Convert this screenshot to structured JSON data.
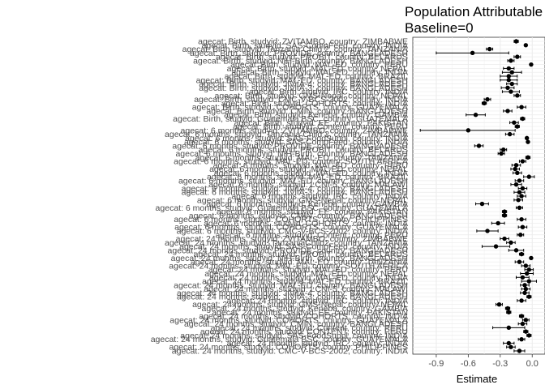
{
  "chart_data": {
    "type": "scatter",
    "subtype": "forest-plot",
    "title_lines": [
      "Population Attributable",
      "Baseline=0"
    ],
    "xlabel": "Estimate",
    "ylabel": "",
    "xlim": [
      -1.12,
      0.12
    ],
    "x_ticks": [
      -0.9,
      -0.6,
      -0.3,
      0.0
    ],
    "x_tick_labels": [
      "-0.9",
      "-0.6",
      "-0.3",
      "0.0"
    ],
    "grid": true,
    "legend": "none",
    "point_color": "#000000",
    "rows": [
      {
        "label": "agecat: Birth, studyid: ZVITAMBO, country: ZIMBABWE",
        "est": -0.15,
        "lo": -0.17,
        "hi": -0.13
      },
      {
        "label": "agecat: Birth, studyid: SAS-CompFeed, country: INDIA",
        "est": -0.06,
        "lo": -0.07,
        "hi": -0.05
      },
      {
        "label": "agecat: Birth, studyid: Tanzania Child 2, country: TANZANIA",
        "est": -0.4,
        "lo": -0.43,
        "hi": -0.37
      },
      {
        "label": "agecat: Birth, studyid: PROVIDE, country: BANGLADESH",
        "est": -0.56,
        "lo": -0.9,
        "hi": -0.22
      },
      {
        "label": "agecat: Birth, studyid: PROBIT, country: BELARUS",
        "est": -0.14,
        "lo": -0.17,
        "hi": -0.11
      },
      {
        "label": "agecat: Birth, studyid: NIH-Birth, country: BANGLADESH",
        "est": -0.2,
        "lo": -0.23,
        "hi": -0.17
      },
      {
        "label": "agecat: Birth, studyid: MAL-ED, country: PERU",
        "est": -0.01,
        "lo": -0.02,
        "hi": 0.0
      },
      {
        "label": "agecat: Birth, studyid: MAL-ED, country: NEPAL",
        "est": -0.22,
        "lo": -0.27,
        "hi": -0.17
      },
      {
        "label": "agecat: Birth, studyid: MAL-ED, country: INDIA",
        "est": -0.19,
        "lo": -0.28,
        "hi": -0.1
      },
      {
        "label": "agecat: Birth, studyid: MAL-ED, country: BRAZIL",
        "est": -0.22,
        "lo": -0.3,
        "hi": -0.14
      },
      {
        "label": "agecat: Birth, studyid: MAL-ED, country: BANGLADESH",
        "est": -0.22,
        "lo": -0.3,
        "hi": -0.14
      },
      {
        "label": "agecat: Birth, studyid: JiVitA-4, country: BANGLADESH",
        "est": -0.19,
        "lo": -0.24,
        "hi": -0.14
      },
      {
        "label": "agecat: Birth, studyid: JiVitA-3, country: BANGLADESH",
        "est": -0.23,
        "lo": -0.29,
        "hi": -0.17
      },
      {
        "label": "agecat: Birth, studyid: IRC, country: INDIA",
        "est": -0.2,
        "lo": -0.28,
        "hi": -0.12
      },
      {
        "label": "agecat: Birth, studyid: GMS-Nepal, country: NEPAL",
        "est": -0.14,
        "lo": -0.17,
        "hi": -0.11
      },
      {
        "label": "agecat: Birth, studyid: CMC-V-BCS-2002, country: INDIA",
        "est": -0.42,
        "lo": -0.45,
        "hi": -0.39
      },
      {
        "label": "agecat: Birth, studyid: COHORTS, country: INDIA",
        "est": -0.45,
        "lo": -0.47,
        "hi": -0.43
      },
      {
        "label": "agecat: Birth, studyid: COHORTS, country: GUATEMALA",
        "est": -0.1,
        "lo": -0.14,
        "hi": -0.06
      },
      {
        "label": "agecat: Birth, studyid: CMIN, country: BANGLADESH",
        "est": -0.23,
        "lo": -0.27,
        "hi": -0.19
      },
      {
        "label": "agecat: Birth, studyid: Keneba, country: GAMBIA",
        "est": -0.53,
        "lo": -0.62,
        "hi": -0.44
      },
      {
        "label": "agecat: Birth, studyid: Guatemala BSC, country: GUATEMALA",
        "est": -0.09,
        "lo": -0.11,
        "hi": -0.07
      },
      {
        "label": "agecat: Birth, studyid: EE, country: PAKISTAN",
        "est": -0.17,
        "lo": -0.21,
        "hi": -0.13
      },
      {
        "label": "agecat: Birth, studyid: Content, country: PERU",
        "est": -0.14,
        "lo": -0.16,
        "hi": -0.12
      },
      {
        "label": "agecat: 6 months, studyid: ZVITAMBO, country: ZIMBABWE",
        "est": -0.6,
        "lo": -1.05,
        "hi": -0.16
      },
      {
        "label": "agecat: 6 months, studyid: Tanzania Child 2, country: TANZANIA",
        "est": -0.21,
        "lo": -0.25,
        "hi": -0.17
      },
      {
        "label": "agecat: 6 months, studyid: SAS-FoodSuppl, country: INDIA",
        "est": -0.05,
        "lo": -0.06,
        "hi": -0.04
      },
      {
        "label": "agecat: 6 months, studyid: SAS-CompFeed, country: INDIA",
        "est": -0.04,
        "lo": -0.05,
        "hi": -0.03
      },
      {
        "label": "agecat: 6 months, studyid: PROVIDE, country: BANGLADESH",
        "est": -0.5,
        "lo": -0.54,
        "hi": -0.46
      },
      {
        "label": "agecat: 6 months, studyid: PROBIT, country: BELARUS",
        "est": -0.27,
        "lo": -0.3,
        "hi": -0.24
      },
      {
        "label": "agecat: 6 months, studyid: NIH-Birth, country: BANGLADESH",
        "est": -0.29,
        "lo": -0.32,
        "hi": -0.26
      },
      {
        "label": "agecat: 6 months, studyid: MAL-ED, country: TANZANIA",
        "est": -0.04,
        "lo": -0.06,
        "hi": -0.02
      },
      {
        "label": "agecat: 6 months, studyid: MAL-ED, country: SOUTH AFRICA",
        "est": -0.09,
        "lo": -0.12,
        "hi": -0.06
      },
      {
        "label": "agecat: 6 months, studyid: MAL-ED, country: PERU",
        "est": -0.15,
        "lo": -0.19,
        "hi": -0.11
      },
      {
        "label": "agecat: 6 months, studyid: MAL-ED, country: NEPAL",
        "est": -0.16,
        "lo": -0.2,
        "hi": -0.12
      },
      {
        "label": "agecat: 6 months, studyid: MAL-ED, country: INDIA",
        "est": -0.14,
        "lo": -0.18,
        "hi": -0.1
      },
      {
        "label": "agecat: 6 months, studyid: MAL-ED, country: BRAZIL",
        "est": -0.03,
        "lo": -0.08,
        "hi": 0.02
      },
      {
        "label": "agecat: 6 months, studyid: MAL-ED, country: BANGLADESH",
        "est": -0.12,
        "lo": -0.16,
        "hi": -0.08
      },
      {
        "label": "agecat: 6 months, studyid: LCNI-5, country: MALAWI",
        "est": -0.15,
        "lo": -0.2,
        "hi": -0.1
      },
      {
        "label": "agecat: 6 months, studyid: JiVitA-4, country: BANGLADESH",
        "est": -0.09,
        "lo": -0.13,
        "hi": -0.05
      },
      {
        "label": "agecat: 6 months, studyid: JiVitA-3, country: BANGLADESH",
        "est": -0.12,
        "lo": -0.17,
        "hi": -0.07
      },
      {
        "label": "agecat: 6 months, studyid: IRC, country: INDIA",
        "est": -0.1,
        "lo": -0.14,
        "hi": -0.06
      },
      {
        "label": "agecat: 6 months, studyid: GMS-Nepal, country: NEPAL",
        "est": -0.13,
        "lo": -0.17,
        "hi": -0.09
      },
      {
        "label": "agecat: 6 months, studyid: Keneba, country: GAMBIA",
        "est": -0.47,
        "lo": -0.53,
        "hi": -0.41
      },
      {
        "label": "agecat: 6 months, studyid: Guatemala BSC, country: GUATEMALA",
        "est": -0.12,
        "lo": -0.15,
        "hi": -0.09
      },
      {
        "label": "agecat: 6 months, studyid: EE, country: PAKISTAN",
        "est": -0.26,
        "lo": -0.28,
        "hi": -0.24
      },
      {
        "label": "agecat: 6 months, studyid: CMIN, country: BANGLADESH",
        "est": -0.26,
        "lo": -0.28,
        "hi": -0.24
      },
      {
        "label": "agecat: 6 months, studyid: COHORTS, country: PHILIPPINES",
        "est": -0.1,
        "lo": -0.14,
        "hi": -0.06
      },
      {
        "label": "agecat: 6 months, studyid: COHORTS, country: INDIA",
        "est": -0.32,
        "lo": -0.38,
        "hi": -0.26
      },
      {
        "label": "agecat: 6 months, studyid: COHORTS, country: GUATEMALA",
        "est": -0.09,
        "lo": -0.13,
        "hi": -0.05
      },
      {
        "label": "agecat: 6 months, studyid: CMC-V-BCS-2002, country: INDIA",
        "est": -0.42,
        "lo": -0.52,
        "hi": -0.32
      },
      {
        "label": "agecat: 6 months, studyid: Content, country: PERU",
        "est": -0.11,
        "lo": -0.14,
        "hi": -0.08
      },
      {
        "label": "agecat: 24 months, studyid: ZVITAMBO, country: ZIMBABWE",
        "est": -0.26,
        "lo": -0.3,
        "hi": -0.22
      },
      {
        "label": "agecat: 24 months, studyid: TanzaniaChild2, country: TANZANIA",
        "est": -0.2,
        "lo": -0.24,
        "hi": -0.16
      },
      {
        "label": "agecat: 24 months, studyid: SAS-CompFeed, country: INDIA",
        "est": -0.34,
        "lo": -0.47,
        "hi": -0.21
      },
      {
        "label": "agecat: 24 months, studyid: PROVIDE, country: BANGLADESH",
        "est": -0.15,
        "lo": -0.22,
        "hi": -0.08
      },
      {
        "label": "agecat: 24 months, studyid: PROBIT, country: BELARUS",
        "est": -0.1,
        "lo": -0.12,
        "hi": -0.08
      },
      {
        "label": "agecat: 24 months, studyid: NIH-Birth, country: BANGLADESH",
        "est": -0.01,
        "lo": -0.02,
        "hi": 0.0
      },
      {
        "label": "agecat: 24 months, studyid: MAL-ED, country: TANZANIA",
        "est": -0.12,
        "lo": -0.16,
        "hi": -0.08
      },
      {
        "label": "agecat: 24 months, studyid: MAL-ED, country: SOUTH AFRICA",
        "est": -0.06,
        "lo": -0.1,
        "hi": -0.02
      },
      {
        "label": "agecat: 24 months, studyid: MAL-ED, country: PERU",
        "est": -0.03,
        "lo": -0.07,
        "hi": 0.01
      },
      {
        "label": "agecat: 24 months, studyid: MAL-ED, country: NEPAL",
        "est": -0.05,
        "lo": -0.11,
        "hi": 0.01
      },
      {
        "label": "agecat: 24 months, studyid: MAL-ED, country: INDIA",
        "est": -0.09,
        "lo": -0.15,
        "hi": -0.03
      },
      {
        "label": "agecat: 24 months, studyid: MAL-ED, country: BRAZIL",
        "est": -0.03,
        "lo": -0.1,
        "hi": 0.04
      },
      {
        "label": "agecat: 24 months, studyid: MAL-ED, country: BANGLADESH",
        "est": -0.07,
        "lo": -0.11,
        "hi": -0.03
      },
      {
        "label": "agecat: 24 months, studyid: LCNI-5, country: MALAWI",
        "est": -0.06,
        "lo": -0.1,
        "hi": -0.02
      },
      {
        "label": "agecat: 24 months, studyid: JiVitA-4, country: BANGLADESH",
        "est": -0.07,
        "lo": -0.11,
        "hi": -0.03
      },
      {
        "label": "agecat: 24 months, studyid: JiVitA-3, country: BANGLADESH",
        "est": -0.03,
        "lo": -0.05,
        "hi": -0.01
      },
      {
        "label": "agecat: 24 months, studyid: IRC, country: INDIA",
        "est": -0.1,
        "lo": -0.14,
        "hi": -0.06
      },
      {
        "label": "agecat: 24 months, studyid: GMS-Nepal, country: NEPAL",
        "est": -0.31,
        "lo": -0.34,
        "hi": -0.28
      },
      {
        "label": "agecat: 24 months, studyid: Keneba, country: GAMBIA",
        "est": -0.23,
        "lo": -0.25,
        "hi": -0.21
      },
      {
        "label": "agecat: 24 months, studyid: EE, country: PAKISTAN",
        "est": -0.22,
        "lo": -0.24,
        "hi": -0.2
      },
      {
        "label": "agecat: 24 months, studyid: COHORTS, country: INDIA",
        "est": -0.1,
        "lo": -0.12,
        "hi": -0.08
      },
      {
        "label": "agecat: 24 months, studyid: COHORTS, country: GUATEMALA",
        "est": -0.06,
        "lo": -0.09,
        "hi": -0.03
      },
      {
        "label": "agecat: 24 months, studyid: CMIN, country: BANGLADESH",
        "est": -0.09,
        "lo": -0.13,
        "hi": -0.05
      },
      {
        "label": "agecat: 24 months, studyid: Content, country: PERU",
        "est": -0.22,
        "lo": -0.37,
        "hi": -0.07
      },
      {
        "label": "agecat: 24 months, studyid: CONTENT, country: PERU",
        "est": -0.06,
        "lo": -0.08,
        "hi": -0.04
      },
      {
        "label": "agecat: 24 months, studyid: SAS-FoodSuppl, country: INDIA",
        "est": -0.03,
        "lo": -0.05,
        "hi": -0.01
      },
      {
        "label": "agecat: 24 months, studyid: Guatemala BSC, country: GUATEMALA",
        "est": -0.1,
        "lo": -0.13,
        "hi": -0.07
      },
      {
        "label": "agecat: 24 months, studyid: IRC, country: INDIA",
        "est": -0.22,
        "lo": -0.27,
        "hi": -0.17
      },
      {
        "label": "agecat: 24 months, studyid: COHORTS, country: PHILIPPINES",
        "est": -0.2,
        "lo": -0.24,
        "hi": -0.16
      },
      {
        "label": "agecat: 24 months, studyid: CMC-V-BCS-2002, country: INDIA",
        "est": -0.12,
        "lo": -0.17,
        "hi": -0.07
      }
    ]
  }
}
